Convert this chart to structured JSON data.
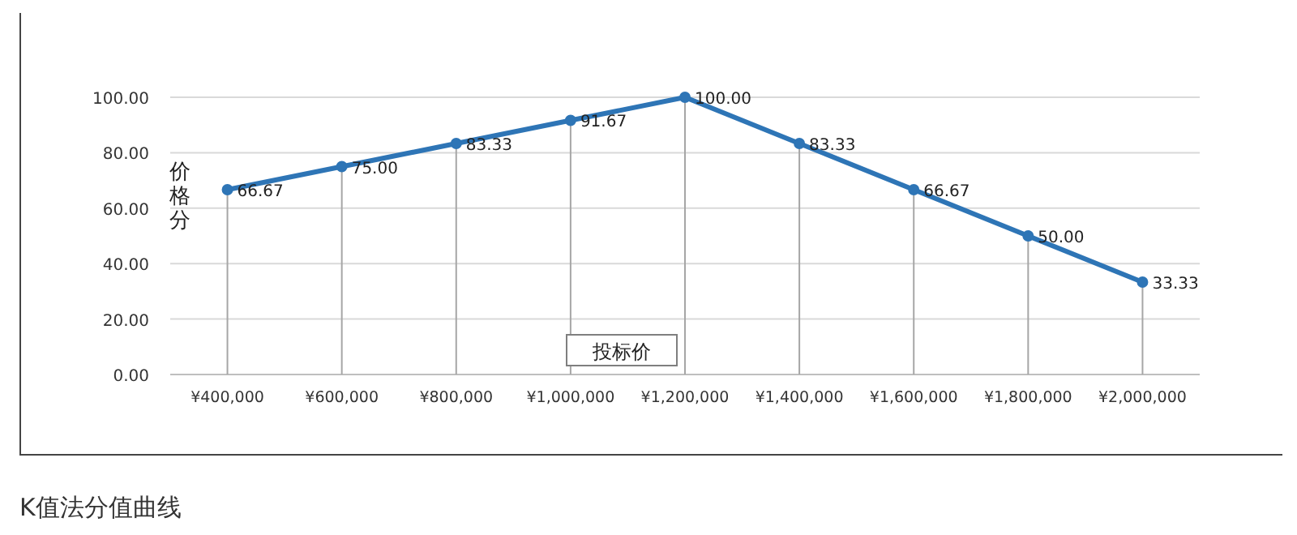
{
  "chart_data": {
    "type": "line",
    "categories": [
      "¥400,000",
      "¥600,000",
      "¥800,000",
      "¥1,000,000",
      "¥1,200,000",
      "¥1,400,000",
      "¥1,600,000",
      "¥1,800,000",
      "¥2,000,000"
    ],
    "series": [
      {
        "color": "#2e75b6",
        "values": [
          66.67,
          75.0,
          83.33,
          91.67,
          100.0,
          83.33,
          66.67,
          50.0,
          33.33
        ],
        "value_labels": [
          "66.67",
          "75.00",
          "83.33",
          "91.67",
          "100.00",
          "83.33",
          "66.67",
          "50.00",
          "33.33"
        ]
      }
    ],
    "ylim": [
      0,
      100
    ],
    "yticks": [
      {
        "value": 0,
        "label": "0.00"
      },
      {
        "value": 20,
        "label": "20.00"
      },
      {
        "value": 40,
        "label": "40.00"
      },
      {
        "value": 60,
        "label": "60.00"
      },
      {
        "value": 80,
        "label": "80.00"
      },
      {
        "value": 100,
        "label": "100.00"
      }
    ],
    "ylabel": "价格分",
    "xlabel": "投标价",
    "grid": true,
    "marker": "circle",
    "annotations": [
      "K值法分值曲线"
    ]
  }
}
